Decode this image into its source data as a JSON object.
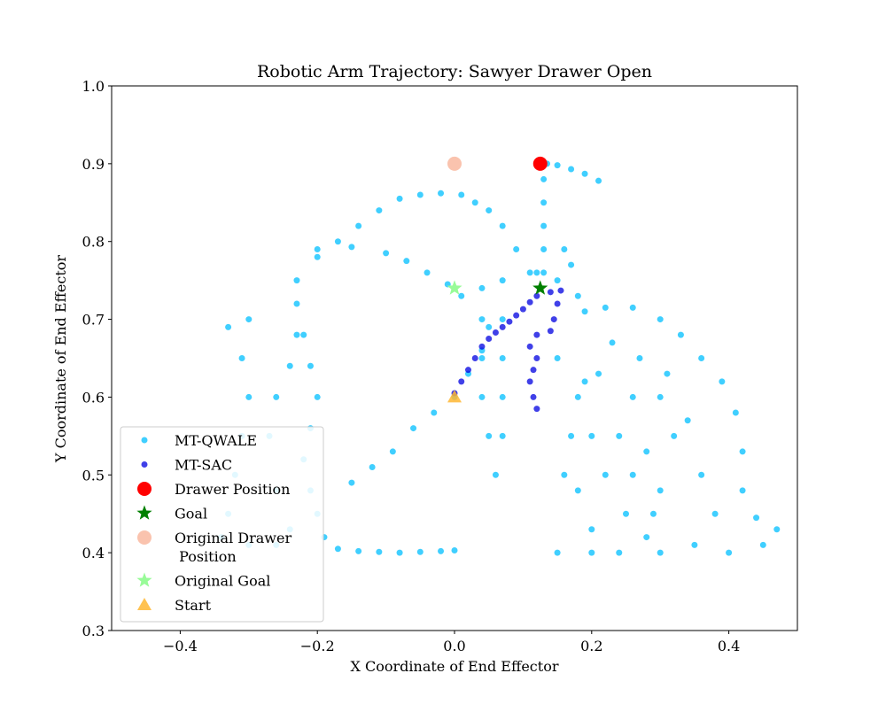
{
  "chart_data": {
    "type": "scatter",
    "title": "Robotic Arm Trajectory: Sawyer Drawer Open",
    "x_label": "X Coordinate of End Effector",
    "y_label": "Y Coordinate of End Effector",
    "xlim": [
      -0.5,
      0.5
    ],
    "ylim": [
      0.3,
      1.0
    ],
    "xticks": [
      {
        "value": -0.4,
        "label": "−0.4"
      },
      {
        "value": -0.2,
        "label": "−0.2"
      },
      {
        "value": 0.0,
        "label": "0.0"
      },
      0.2,
      0.4
    ],
    "yticks": [
      0.3,
      0.4,
      0.5,
      0.6,
      0.7,
      0.8,
      0.9,
      {
        "value": 1.0,
        "label": "1.0"
      }
    ],
    "legend": "lower left",
    "series": [
      {
        "name": "MT-QWALE",
        "color": "#00bfff",
        "marker": "o",
        "x": [
          -0.23,
          -0.2,
          -0.17,
          -0.14,
          -0.11,
          -0.08,
          -0.05,
          -0.02,
          0.01,
          0.03,
          0.05,
          0.07,
          0.09,
          0.11,
          -0.2,
          -0.15,
          -0.1,
          -0.07,
          -0.04,
          -0.01,
          0.01,
          -0.23,
          -0.22,
          -0.21,
          -0.2,
          -0.21,
          -0.22,
          -0.21,
          -0.2,
          -0.19,
          -0.17,
          -0.14,
          -0.11,
          -0.08,
          -0.05,
          -0.02,
          0.0,
          -0.15,
          -0.12,
          -0.09,
          -0.06,
          -0.03,
          0.0,
          0.02,
          0.04,
          0.05,
          -0.33,
          -0.3,
          -0.31,
          -0.3,
          -0.31,
          -0.32,
          -0.33,
          -0.34,
          -0.3,
          -0.26,
          -0.24,
          -0.26,
          -0.27,
          -0.26,
          -0.24,
          -0.23,
          0.07,
          0.07,
          0.07,
          0.07,
          0.07,
          0.06,
          0.04,
          0.04,
          0.04,
          0.04,
          0.05,
          0.13,
          0.13,
          0.13,
          0.13,
          0.13,
          0.135,
          0.15,
          0.17,
          0.19,
          0.21,
          0.12,
          0.15,
          0.17,
          0.16,
          0.18,
          0.19,
          0.15,
          0.18,
          0.2,
          0.22,
          0.25,
          0.28,
          0.3,
          0.32,
          0.3,
          0.27,
          0.23,
          0.19,
          0.17,
          0.18,
          0.2,
          0.24,
          0.3,
          0.35,
          0.38,
          0.36,
          0.34,
          0.31,
          0.26,
          0.24,
          0.26,
          0.29,
          0.15,
          0.2,
          0.4,
          0.45,
          0.16,
          0.21,
          0.28,
          0.22,
          0.26,
          0.3,
          0.33,
          0.36,
          0.39,
          0.41,
          0.42,
          0.42,
          0.44,
          0.47
        ],
        "y": [
          0.75,
          0.78,
          0.8,
          0.82,
          0.84,
          0.855,
          0.86,
          0.862,
          0.86,
          0.85,
          0.84,
          0.82,
          0.79,
          0.76,
          0.79,
          0.793,
          0.785,
          0.775,
          0.76,
          0.745,
          0.73,
          0.72,
          0.68,
          0.64,
          0.6,
          0.56,
          0.52,
          0.48,
          0.45,
          0.42,
          0.405,
          0.402,
          0.401,
          0.4,
          0.401,
          0.402,
          0.403,
          0.49,
          0.51,
          0.53,
          0.56,
          0.58,
          0.6,
          0.63,
          0.66,
          0.69,
          0.69,
          0.7,
          0.65,
          0.6,
          0.55,
          0.5,
          0.45,
          0.42,
          0.41,
          0.41,
          0.43,
          0.48,
          0.55,
          0.6,
          0.64,
          0.68,
          0.75,
          0.7,
          0.65,
          0.6,
          0.55,
          0.5,
          0.74,
          0.7,
          0.65,
          0.6,
          0.55,
          0.76,
          0.79,
          0.82,
          0.85,
          0.88,
          0.9,
          0.898,
          0.893,
          0.887,
          0.878,
          0.76,
          0.75,
          0.77,
          0.79,
          0.73,
          0.71,
          0.65,
          0.6,
          0.55,
          0.5,
          0.45,
          0.42,
          0.48,
          0.55,
          0.6,
          0.65,
          0.67,
          0.62,
          0.55,
          0.48,
          0.43,
          0.4,
          0.4,
          0.41,
          0.45,
          0.5,
          0.57,
          0.63,
          0.6,
          0.55,
          0.5,
          0.45,
          0.4,
          0.4,
          0.4,
          0.41,
          0.5,
          0.63,
          0.53,
          0.715,
          0.715,
          0.7,
          0.68,
          0.65,
          0.62,
          0.58,
          0.53,
          0.48,
          0.445,
          0.43
        ]
      },
      {
        "name": "MT-SAC",
        "color": "#0000e0",
        "marker": "o",
        "x": [
          0.0,
          0.01,
          0.02,
          0.03,
          0.04,
          0.05,
          0.06,
          0.07,
          0.08,
          0.09,
          0.1,
          0.11,
          0.12,
          0.14,
          0.155,
          0.15,
          0.145,
          0.14,
          0.12,
          0.11,
          0.12,
          0.115,
          0.11,
          0.115,
          0.12
        ],
        "y": [
          0.605,
          0.62,
          0.635,
          0.65,
          0.665,
          0.675,
          0.683,
          0.69,
          0.697,
          0.705,
          0.713,
          0.722,
          0.73,
          0.735,
          0.737,
          0.72,
          0.7,
          0.685,
          0.68,
          0.665,
          0.65,
          0.635,
          0.62,
          0.6,
          0.585
        ]
      },
      {
        "name": "Drawer Position",
        "color": "#ff0000",
        "marker": "big",
        "x": [
          0.125
        ],
        "y": [
          0.9
        ]
      },
      {
        "name": "Goal",
        "color": "#008000",
        "marker": "*",
        "x": [
          0.125
        ],
        "y": [
          0.74
        ]
      },
      {
        "name": "Original Drawer\n Position",
        "color": "#f9b49a",
        "marker": "big",
        "x": [
          0.0
        ],
        "y": [
          0.9
        ]
      },
      {
        "name": "Original Goal",
        "color": "#98fb98",
        "marker": "*",
        "x": [
          0.0
        ],
        "y": [
          0.74
        ]
      },
      {
        "name": "Start",
        "color": "#ffb733",
        "marker": "^",
        "x": [
          0.0
        ],
        "y": [
          0.6
        ]
      }
    ]
  }
}
